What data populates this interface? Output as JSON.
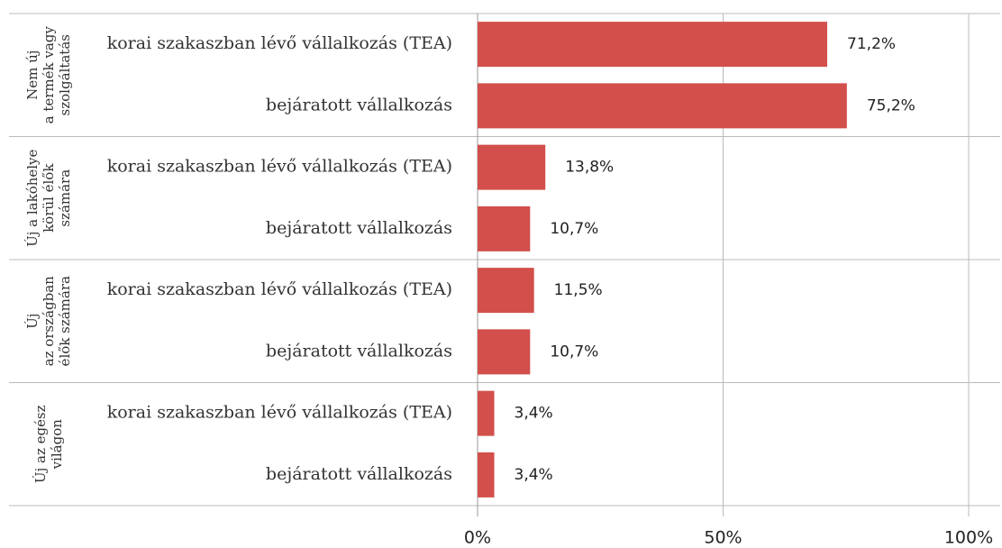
{
  "chart_data": {
    "type": "bar",
    "color": "#d24f4b",
    "groups": [
      {
        "label": [
          "Nem új",
          "a termék vagy",
          "szolgáltatás"
        ],
        "categories": [
          "korai szakaszban lévő vállalkozás (TEA)",
          "bejáratott vállalkozás"
        ],
        "values": [
          71.2,
          75.2
        ],
        "value_labels": [
          "71,2%",
          "75,2%"
        ]
      },
      {
        "label": [
          "Új a lakóhelye",
          "körül élők",
          "számára"
        ],
        "categories": [
          "korai szakaszban lévő vállalkozás (TEA)",
          "bejáratott vállalkozás"
        ],
        "values": [
          13.8,
          10.7
        ],
        "value_labels": [
          "13,8%",
          "10,7%"
        ]
      },
      {
        "label": [
          "Új",
          "az országban",
          "élők számára"
        ],
        "categories": [
          "korai szakaszban lévő vállalkozás (TEA)",
          "bejáratott vállalkozás"
        ],
        "values": [
          11.5,
          10.7
        ],
        "value_labels": [
          "11,5%",
          "10,7%"
        ]
      },
      {
        "label": [
          "Új az egész",
          "világon"
        ],
        "categories": [
          "korai szakaszban lévő vállalkozás (TEA)",
          "bejáratott vállalkozás"
        ],
        "values": [
          3.4,
          3.4
        ],
        "value_labels": [
          "3,4%",
          "3,4%"
        ]
      }
    ],
    "xlim": [
      0,
      100
    ],
    "xticks": [
      {
        "value": 0,
        "label": "0%"
      },
      {
        "value": 50,
        "label": "50%"
      },
      {
        "value": 100,
        "label": "100%"
      }
    ],
    "grid": true
  }
}
